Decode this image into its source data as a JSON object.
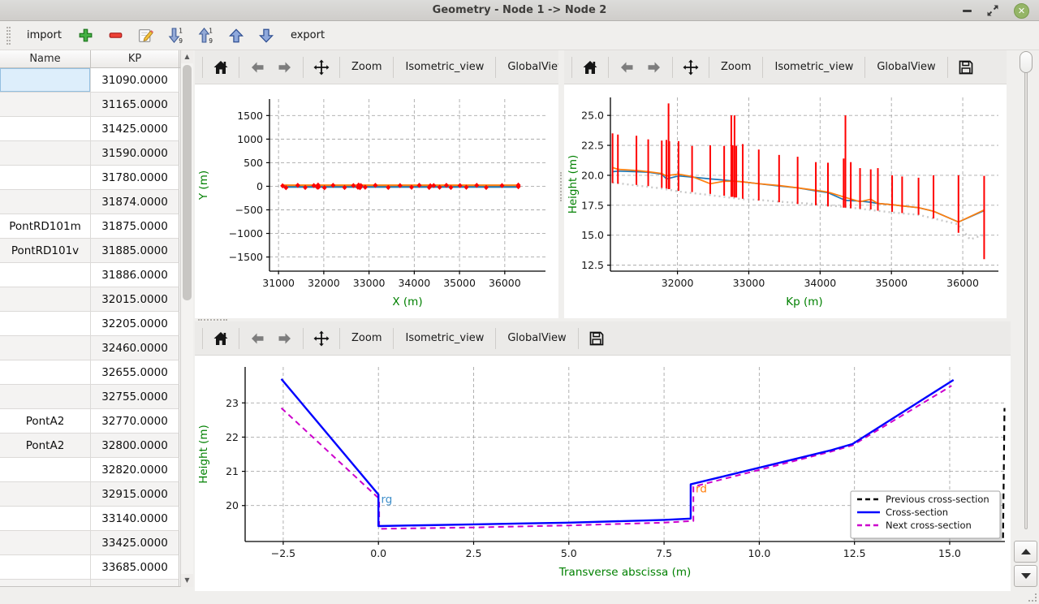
{
  "window": {
    "title": "Geometry - Node 1 -> Node 2"
  },
  "main_toolbar": {
    "import_label": "import",
    "export_label": "export",
    "icons": [
      "add",
      "remove",
      "edit",
      "sort-descending",
      "sort-ascending",
      "move-up",
      "move-down"
    ]
  },
  "plot_toolbar": {
    "zoom_label": "Zoom",
    "isometric_label": "Isometric_view",
    "globalview_label": "GlobalView",
    "overflow_label": "»"
  },
  "table": {
    "columns": [
      "Name",
      "KP"
    ],
    "rows": [
      {
        "name": "",
        "kp": "31090.0000",
        "selected": true
      },
      {
        "name": "",
        "kp": "31165.0000"
      },
      {
        "name": "",
        "kp": "31425.0000"
      },
      {
        "name": "",
        "kp": "31590.0000"
      },
      {
        "name": "",
        "kp": "31780.0000"
      },
      {
        "name": "",
        "kp": "31874.0000"
      },
      {
        "name": "PontRD101m",
        "kp": "31875.0000"
      },
      {
        "name": "PontRD101v",
        "kp": "31885.0000"
      },
      {
        "name": "",
        "kp": "31886.0000"
      },
      {
        "name": "",
        "kp": "32015.0000"
      },
      {
        "name": "",
        "kp": "32205.0000"
      },
      {
        "name": "",
        "kp": "32460.0000"
      },
      {
        "name": "",
        "kp": "32655.0000"
      },
      {
        "name": "",
        "kp": "32755.0000"
      },
      {
        "name": "PontA2",
        "kp": "32770.0000"
      },
      {
        "name": "PontA2",
        "kp": "32800.0000"
      },
      {
        "name": "",
        "kp": "32820.0000"
      },
      {
        "name": "",
        "kp": "32915.0000"
      },
      {
        "name": "",
        "kp": "33140.0000"
      },
      {
        "name": "",
        "kp": "33425.0000"
      },
      {
        "name": "",
        "kp": "33685.0000"
      }
    ]
  },
  "colors": {
    "axis_label_green": "#008000",
    "profile_blue": "#1f77b4",
    "profile_orange": "#ff7f0e",
    "marker_red": "#ff0000",
    "cross_section_blue": "#0000ff",
    "next_magenta": "#cc00cc",
    "previous_black": "#000000",
    "thalweg_gray": "#c9c9c9"
  },
  "chart_data": [
    {
      "id": "plan",
      "type": "line",
      "xlabel": "X (m)",
      "ylabel": "Y (m)",
      "xlim": [
        30800,
        36900
      ],
      "ylim": [
        -1800,
        1850
      ],
      "xticks": [
        31000,
        32000,
        33000,
        34000,
        35000,
        36000
      ],
      "xticklabels": [
        "31000",
        "32000",
        "33000",
        "34000",
        "35000",
        "36000"
      ],
      "yticks": [
        -1500,
        -1000,
        -500,
        0,
        500,
        1000,
        1500
      ],
      "yticklabels": [
        "−1500",
        "−1000",
        "−500",
        "0",
        "500",
        "1000",
        "1500"
      ],
      "grid": true,
      "series": [
        {
          "name": "river-axis-blue",
          "type": "line",
          "color": "#1f77b4",
          "width": 2.6,
          "points": [
            [
              31090,
              -12
            ],
            [
              36300,
              -12
            ]
          ]
        },
        {
          "name": "river-axis-orange",
          "type": "line",
          "color": "#ff7f0e",
          "width": 2.2,
          "points": [
            [
              31090,
              22
            ],
            [
              36300,
              22
            ]
          ]
        },
        {
          "name": "cross-section-markers",
          "type": "markers",
          "color": "#ff0000",
          "points": [
            [
              31090,
              10
            ],
            [
              31165,
              -30
            ],
            [
              31425,
              20
            ],
            [
              31590,
              -25
            ],
            [
              31780,
              15
            ],
            [
              31860,
              -20
            ],
            [
              31874,
              25
            ],
            [
              31885,
              -15
            ],
            [
              32015,
              -30
            ],
            [
              32205,
              20
            ],
            [
              32460,
              -25
            ],
            [
              32655,
              15
            ],
            [
              32755,
              -20
            ],
            [
              32770,
              25
            ],
            [
              32800,
              -30
            ],
            [
              32820,
              15
            ],
            [
              32915,
              -20
            ],
            [
              33140,
              20
            ],
            [
              33425,
              -25
            ],
            [
              33685,
              15
            ],
            [
              33940,
              -20
            ],
            [
              34110,
              20
            ],
            [
              34330,
              -25
            ],
            [
              34355,
              10
            ],
            [
              34430,
              15
            ],
            [
              34560,
              -20
            ],
            [
              34710,
              20
            ],
            [
              34810,
              -25
            ],
            [
              35010,
              15
            ],
            [
              35150,
              -20
            ],
            [
              35380,
              20
            ],
            [
              35590,
              -25
            ],
            [
              35940,
              15
            ],
            [
              36300,
              -10
            ],
            [
              36300,
              25
            ]
          ]
        }
      ]
    },
    {
      "id": "profile",
      "type": "line",
      "xlabel": "Kp (m)",
      "ylabel": "Height (m)",
      "xlim": [
        31060,
        36500
      ],
      "ylim": [
        12.0,
        26.5
      ],
      "xticks": [
        32000,
        33000,
        34000,
        35000,
        36000
      ],
      "xticklabels": [
        "32000",
        "33000",
        "34000",
        "35000",
        "36000"
      ],
      "yticks": [
        12.5,
        15.0,
        17.5,
        20.0,
        22.5,
        25.0
      ],
      "yticklabels": [
        "12.5",
        "15.0",
        "17.5",
        "20.0",
        "22.5",
        "25.0"
      ],
      "grid": true,
      "series": [
        {
          "name": "thalweg",
          "type": "line",
          "color": "#c9c9c9",
          "width": 2.4,
          "dash": "2 4",
          "points": [
            [
              31090,
              19.4
            ],
            [
              31425,
              19.15
            ],
            [
              31780,
              18.9
            ],
            [
              32015,
              18.65
            ],
            [
              32460,
              18.35
            ],
            [
              32915,
              18.0
            ],
            [
              33140,
              17.95
            ],
            [
              33425,
              17.8
            ],
            [
              33940,
              17.6
            ],
            [
              34350,
              17.35
            ],
            [
              34710,
              17.1
            ],
            [
              35010,
              16.9
            ],
            [
              35380,
              16.7
            ],
            [
              35590,
              16.4
            ],
            [
              35940,
              15.9
            ],
            [
              36100,
              14.65
            ],
            [
              36300,
              15.05
            ]
          ]
        },
        {
          "name": "left-bank",
          "type": "line",
          "color": "#1f77b4",
          "width": 1.7,
          "points": [
            [
              31090,
              20.3
            ],
            [
              31165,
              20.35
            ],
            [
              31425,
              20.3
            ],
            [
              31590,
              20.25
            ],
            [
              31780,
              20.1
            ],
            [
              31845,
              19.7
            ],
            [
              31886,
              19.75
            ],
            [
              32015,
              19.95
            ],
            [
              32205,
              19.85
            ],
            [
              32460,
              19.7
            ],
            [
              32655,
              19.6
            ],
            [
              32825,
              19.5
            ],
            [
              32915,
              19.45
            ],
            [
              33140,
              19.3
            ],
            [
              33425,
              19.1
            ],
            [
              33685,
              18.95
            ],
            [
              33940,
              18.7
            ],
            [
              34110,
              18.55
            ],
            [
              34355,
              17.9
            ],
            [
              34560,
              17.85
            ],
            [
              34710,
              17.75
            ],
            [
              34810,
              17.65
            ],
            [
              35010,
              17.55
            ],
            [
              35150,
              17.45
            ],
            [
              35380,
              17.3
            ],
            [
              35590,
              17.0
            ],
            [
              35940,
              16.1
            ],
            [
              36300,
              17.05
            ]
          ]
        },
        {
          "name": "right-bank",
          "type": "line",
          "color": "#ff7f0e",
          "width": 1.7,
          "points": [
            [
              31090,
              20.65
            ],
            [
              31165,
              20.5
            ],
            [
              31425,
              20.4
            ],
            [
              31590,
              20.3
            ],
            [
              31780,
              20.15
            ],
            [
              31845,
              19.95
            ],
            [
              31886,
              20.0
            ],
            [
              32015,
              20.1
            ],
            [
              32205,
              19.9
            ],
            [
              32460,
              19.3
            ],
            [
              32655,
              19.5
            ],
            [
              32825,
              19.5
            ],
            [
              32915,
              19.45
            ],
            [
              33140,
              19.3
            ],
            [
              33425,
              19.15
            ],
            [
              33685,
              18.95
            ],
            [
              33940,
              18.75
            ],
            [
              34110,
              18.6
            ],
            [
              34355,
              18.15
            ],
            [
              34560,
              17.8
            ],
            [
              34710,
              18.0
            ],
            [
              34810,
              17.65
            ],
            [
              35010,
              17.55
            ],
            [
              35150,
              17.45
            ],
            [
              35380,
              17.3
            ],
            [
              35590,
              17.0
            ],
            [
              35940,
              16.1
            ],
            [
              36300,
              17.1
            ]
          ]
        },
        {
          "name": "crest-levels",
          "type": "vlines",
          "color": "#ff0000",
          "width": 2,
          "segments": [
            [
              31090,
              19.35,
              23.5
            ],
            [
              31165,
              19.3,
              23.4
            ],
            [
              31425,
              19.2,
              23.3
            ],
            [
              31590,
              19.1,
              23.0
            ],
            [
              31780,
              18.95,
              22.9
            ],
            [
              31845,
              18.9,
              22.95
            ],
            [
              31875,
              18.85,
              26.0
            ],
            [
              31886,
              18.85,
              22.85
            ],
            [
              32015,
              18.7,
              22.85
            ],
            [
              32205,
              18.6,
              22.45
            ],
            [
              32460,
              18.45,
              22.5
            ],
            [
              32655,
              18.3,
              22.45
            ],
            [
              32755,
              18.2,
              25.0
            ],
            [
              32775,
              18.2,
              22.5
            ],
            [
              32800,
              18.15,
              25.0
            ],
            [
              32825,
              18.15,
              22.45
            ],
            [
              32915,
              18.05,
              22.6
            ],
            [
              33140,
              17.9,
              22.15
            ],
            [
              33425,
              17.75,
              21.7
            ],
            [
              33685,
              17.6,
              21.55
            ],
            [
              33940,
              17.5,
              21.1
            ],
            [
              34110,
              17.4,
              21.05
            ],
            [
              34330,
              17.3,
              21.4
            ],
            [
              34355,
              17.3,
              25.0
            ],
            [
              34430,
              17.25,
              21.1
            ],
            [
              34560,
              17.2,
              20.6
            ],
            [
              34710,
              17.15,
              20.5
            ],
            [
              34810,
              17.05,
              20.6
            ],
            [
              35010,
              16.95,
              20.0
            ],
            [
              35150,
              16.85,
              19.9
            ],
            [
              35380,
              16.7,
              19.8
            ],
            [
              35590,
              16.4,
              20.0
            ],
            [
              35940,
              15.2,
              20.0
            ],
            [
              36300,
              13.0,
              19.95
            ]
          ]
        }
      ]
    },
    {
      "id": "cross_section",
      "type": "line",
      "xlabel": "Transverse abscissa (m)",
      "ylabel": "Height (m)",
      "xlim": [
        -3.5,
        16.45
      ],
      "ylim": [
        18.95,
        24.05
      ],
      "xticks": [
        -2.5,
        0.0,
        2.5,
        5.0,
        7.5,
        10.0,
        12.5,
        15.0
      ],
      "xticklabels": [
        "−2.5",
        "0.0",
        "2.5",
        "5.0",
        "7.5",
        "10.0",
        "12.5",
        "15.0"
      ],
      "yticks": [
        20,
        21,
        22,
        23
      ],
      "yticklabels": [
        "20",
        "21",
        "22",
        "23"
      ],
      "grid": true,
      "series": [
        {
          "name": "previous-cross-section",
          "type": "line",
          "color": "#000000",
          "width": 2.2,
          "dash": "7 5",
          "points": [
            [
              16.4,
              19.05
            ],
            [
              16.44,
              22.85
            ]
          ]
        },
        {
          "name": "next-cross-section",
          "type": "line",
          "color": "#cc00cc",
          "width": 2.0,
          "dash": "7 5",
          "points": [
            [
              -2.55,
              22.85
            ],
            [
              0.02,
              20.2
            ],
            [
              0.02,
              19.32
            ],
            [
              2.5,
              19.36
            ],
            [
              5.0,
              19.42
            ],
            [
              7.5,
              19.5
            ],
            [
              8.27,
              19.55
            ],
            [
              8.27,
              20.55
            ],
            [
              11.9,
              21.58
            ],
            [
              12.45,
              21.76
            ],
            [
              15.05,
              23.5
            ]
          ]
        },
        {
          "name": "cross-section",
          "type": "line",
          "color": "#0000ff",
          "width": 2.4,
          "points": [
            [
              -2.55,
              23.7
            ],
            [
              0,
              20.32
            ],
            [
              0,
              19.4
            ],
            [
              2.5,
              19.45
            ],
            [
              5.0,
              19.5
            ],
            [
              7.5,
              19.58
            ],
            [
              8.2,
              19.62
            ],
            [
              8.2,
              20.62
            ],
            [
              11.9,
              21.62
            ],
            [
              12.45,
              21.8
            ],
            [
              15.1,
              23.67
            ]
          ]
        }
      ],
      "annotations": [
        {
          "text": "rg",
          "x": 0.07,
          "y": 20.08,
          "color": "#3d8ec9"
        },
        {
          "text": "rd",
          "x": 8.33,
          "y": 20.38,
          "color": "#ff7f0e"
        }
      ],
      "legend": {
        "position": "lower-right",
        "items": [
          {
            "label": "Previous cross-section",
            "color": "#000000",
            "dash": "6 4"
          },
          {
            "label": "Cross-section",
            "color": "#0000ff",
            "dash": ""
          },
          {
            "label": "Next cross-section",
            "color": "#cc00cc",
            "dash": "6 4"
          }
        ]
      }
    }
  ]
}
